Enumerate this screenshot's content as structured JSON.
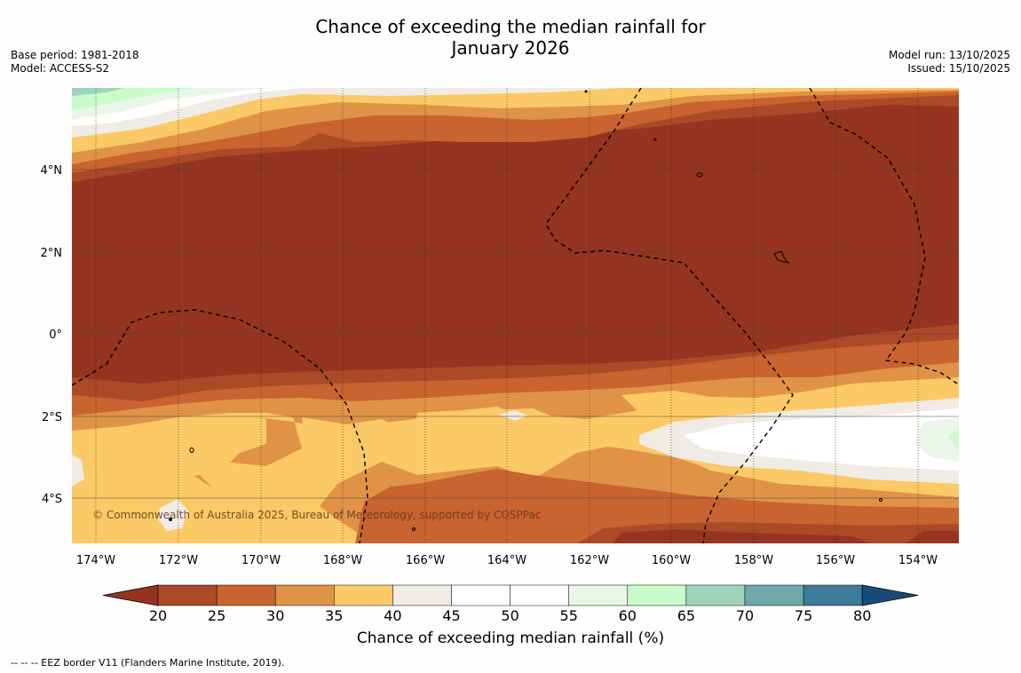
{
  "title_line1": "Chance of exceeding the median rainfall for",
  "title_line2": "January 2026",
  "meta_left": {
    "base_period": "Base period: 1981-2018",
    "model": "Model: ACCESS-S2"
  },
  "meta_right": {
    "model_run": "Model run: 13/10/2025",
    "issued": "Issued: 15/10/2025"
  },
  "copyright": "© Commonwealth of Australia 2025, Bureau of Meteorology, supported by COSPPac",
  "lon_labels": [
    "174°W",
    "172°W",
    "170°W",
    "168°W",
    "166°W",
    "164°W",
    "162°W",
    "160°W",
    "158°W",
    "156°W",
    "154°W"
  ],
  "lat_labels": [
    "4°N",
    "2°N",
    "0°",
    "2°S",
    "4°S"
  ],
  "colorbar": {
    "ticks": [
      "20",
      "25",
      "30",
      "35",
      "40",
      "45",
      "50",
      "55",
      "60",
      "65",
      "70",
      "75",
      "80"
    ],
    "colors": [
      "#ab4a26",
      "#c9632f",
      "#e09347",
      "#fbc965",
      "#f0ebe4",
      "#ffffff",
      "#ffffff",
      "#eaf6e8",
      "#c9fcca",
      "#9fd3bd",
      "#6fa8a8",
      "#3f7a99"
    ],
    "low_extend_color": "#953420",
    "high_extend_color": "#1a4a7a",
    "title": "Chance of exceeding median rainfall (%)"
  },
  "footnote": "--  --  -- EEZ border V11 (Flanders Marine Institute, 2019).",
  "legend_colors": {
    "c_lt20": "#953420",
    "c_20": "#ab4a26",
    "c_25": "#c9632f",
    "c_30": "#e09347",
    "c_35": "#fbc965",
    "c_40": "#f0ebe4",
    "c_45": "#ffffff",
    "c_55": "#eaf6e8",
    "c_60": "#c9fcca",
    "c_65": "#9fd3bd"
  }
}
